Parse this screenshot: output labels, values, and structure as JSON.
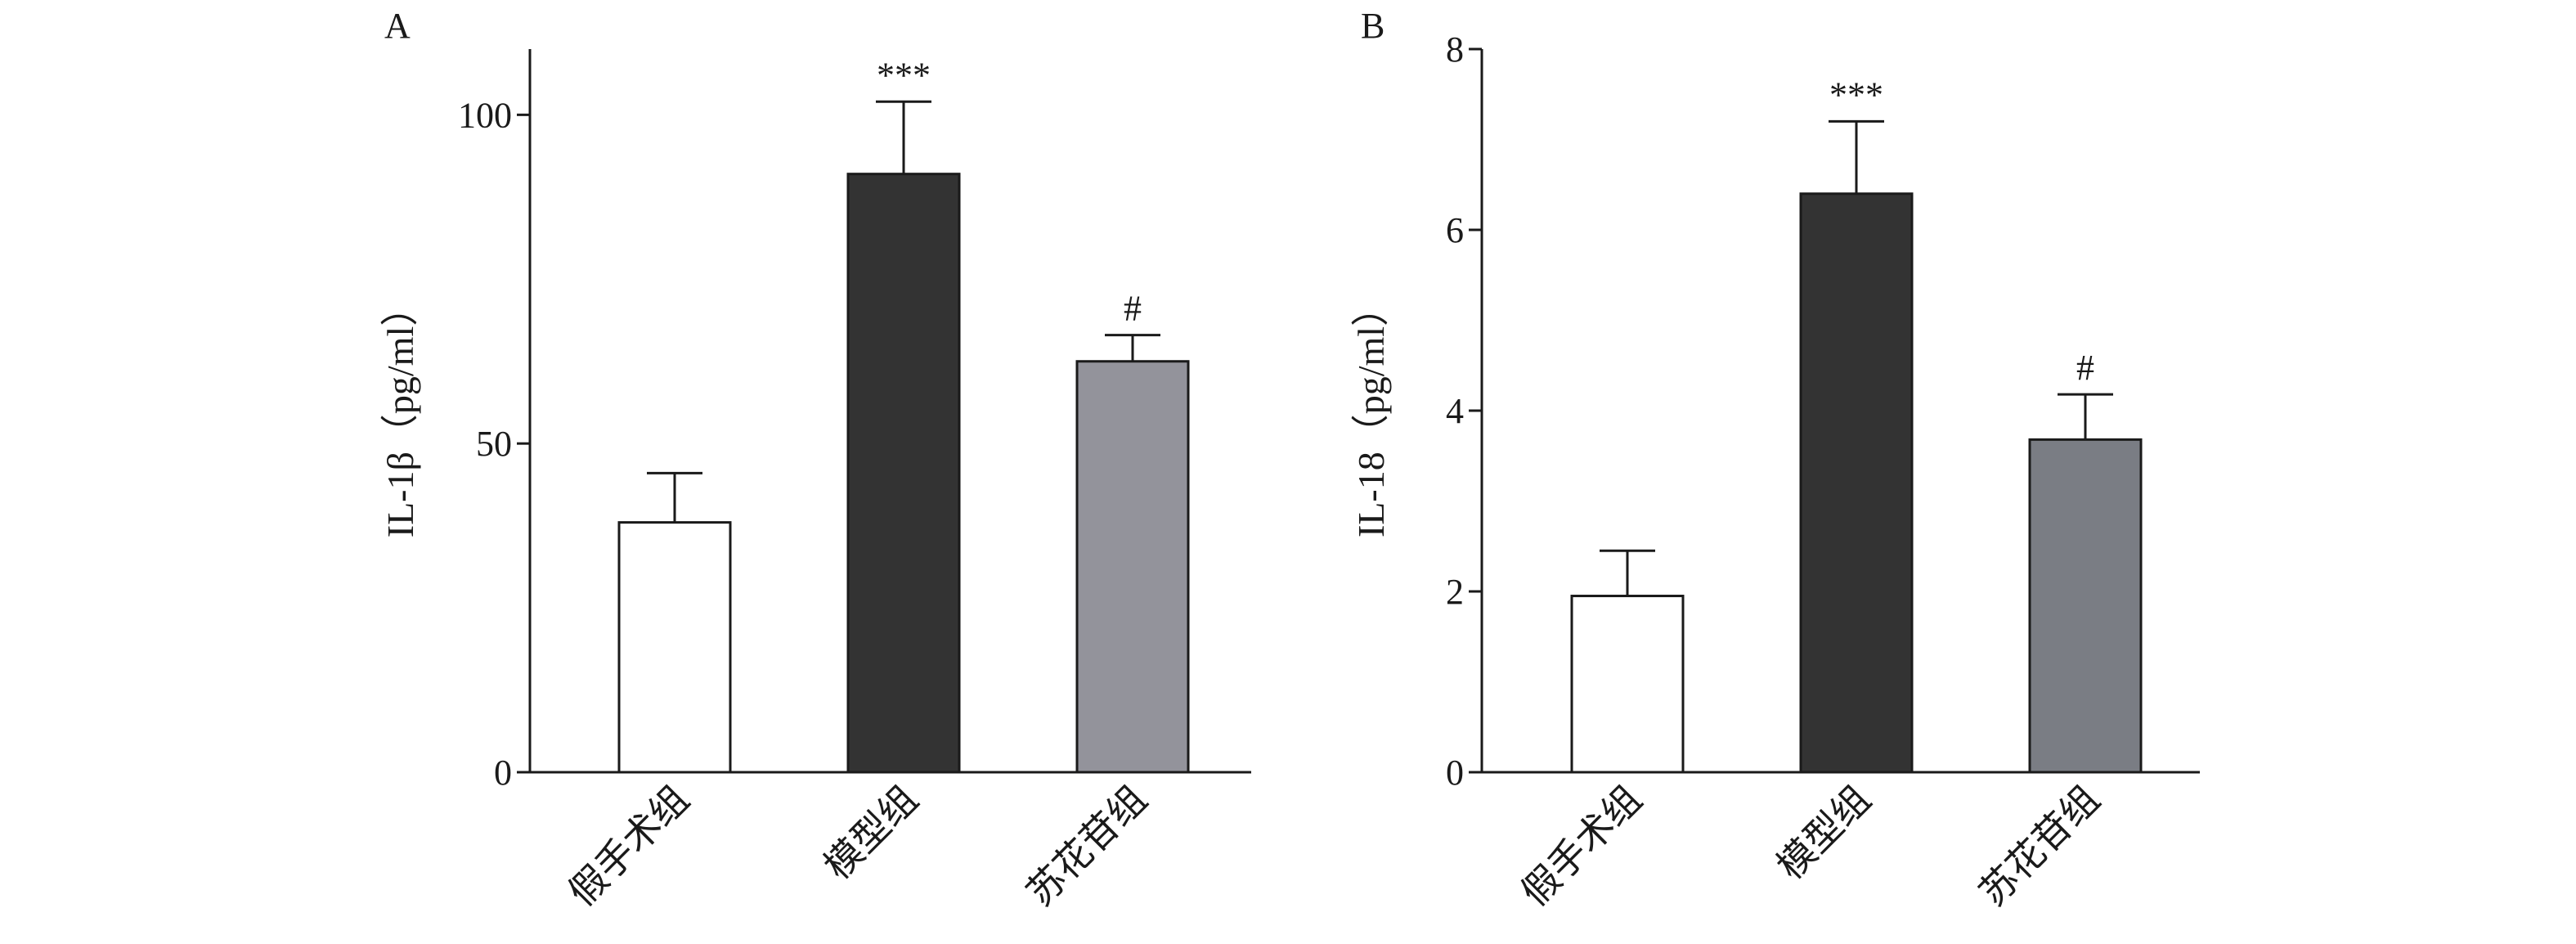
{
  "chart_data": [
    {
      "type": "bar",
      "panel": "A",
      "categories": [
        "假手术组",
        "模型组",
        "苏花苷组"
      ],
      "values": [
        38,
        91,
        62.5
      ],
      "errors": [
        7.5,
        11,
        4
      ],
      "significance": [
        "",
        "***",
        "#"
      ],
      "bar_colors": [
        "#ffffff",
        "#333333",
        "#93939b"
      ],
      "ylabel": "IL-1β（pg/ml）",
      "ylim": [
        0,
        110
      ],
      "yticks": [
        0,
        50,
        100
      ],
      "grid": false
    },
    {
      "type": "bar",
      "panel": "B",
      "categories": [
        "假手术组",
        "模型组",
        "苏花苷组"
      ],
      "values": [
        1.95,
        6.4,
        3.68
      ],
      "errors": [
        0.5,
        0.8,
        0.5
      ],
      "significance": [
        "",
        "***",
        "#"
      ],
      "bar_colors": [
        "#ffffff",
        "#333333",
        "#7a7d84"
      ],
      "ylabel": "IL-18（pg/ml）",
      "ylim": [
        0,
        8
      ],
      "yticks": [
        0,
        2,
        4,
        6,
        8
      ],
      "grid": false
    }
  ]
}
